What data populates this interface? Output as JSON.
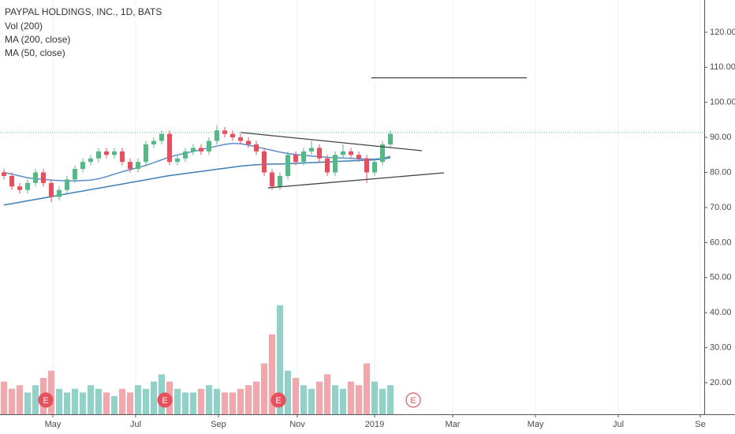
{
  "chart_data": {
    "type": "candlestick",
    "title": "PAYPAL HOLDINGS, INC., 1D, BATS",
    "indicators": [
      "Vol (200)",
      "MA (200, close)",
      "MA (50, close)"
    ],
    "open": [
      80,
      79,
      76,
      75,
      77,
      80,
      77,
      73,
      75,
      78,
      81,
      83,
      84,
      86,
      85,
      86,
      83,
      81,
      83,
      88,
      89,
      91,
      83,
      84,
      86,
      87,
      86,
      89,
      92,
      91,
      90,
      89,
      88,
      86,
      80,
      76,
      79,
      85,
      83,
      86,
      87,
      84,
      80,
      85,
      86,
      85,
      84,
      80,
      83,
      88
    ],
    "high": [
      81,
      80,
      77,
      78,
      81,
      81,
      78,
      76,
      79,
      82,
      84,
      85,
      87,
      87,
      87,
      87,
      84,
      84,
      89,
      90,
      92,
      92,
      85,
      87,
      88,
      88,
      90,
      93.5,
      93,
      92,
      91,
      90,
      89,
      87,
      81,
      80,
      86,
      86,
      87,
      89,
      88,
      85,
      86,
      88,
      87,
      86,
      85,
      84,
      89,
      92
    ],
    "low": [
      78,
      75,
      74,
      74,
      76,
      76,
      71.5,
      72,
      74,
      77,
      80,
      82,
      83,
      84,
      84,
      82,
      80,
      80,
      82,
      87,
      88,
      82,
      82,
      83,
      85,
      85,
      85,
      88,
      90,
      89,
      88,
      87,
      85,
      79,
      75,
      75,
      78,
      82,
      82,
      85,
      83,
      79,
      79,
      84,
      84,
      83,
      77,
      79,
      82,
      87
    ],
    "close": [
      79,
      76,
      75,
      77,
      80,
      77,
      73,
      75,
      78,
      81,
      83,
      84,
      86,
      85,
      86,
      83,
      81,
      83,
      88,
      89,
      91,
      83,
      84,
      86,
      87,
      86,
      89,
      92,
      91,
      90,
      89,
      88,
      86,
      80,
      76,
      79,
      85,
      83,
      86,
      87,
      84,
      80,
      85,
      86,
      85,
      84,
      80,
      83,
      88,
      91
    ],
    "volume": [
      9,
      7,
      8,
      6,
      8,
      10,
      12,
      7,
      6,
      7,
      6,
      8,
      7,
      6,
      5,
      7,
      6,
      8,
      7,
      9,
      11,
      9,
      7,
      6,
      6,
      7,
      8,
      7,
      6,
      6,
      7,
      8,
      9,
      14,
      22,
      30,
      12,
      10,
      8,
      7,
      9,
      11,
      8,
      7,
      9,
      8,
      14,
      9,
      7,
      8
    ],
    "volume_ylim": [
      0,
      38
    ],
    "series": [
      {
        "name": "MA (200, close)",
        "color": "#3f7fb5",
        "values": [
          70.7,
          71.1,
          71.5,
          71.9,
          72.3,
          72.7,
          73.1,
          73.5,
          73.9,
          74.3,
          74.7,
          75.1,
          75.5,
          75.9,
          76.3,
          76.7,
          77.1,
          77.5,
          77.9,
          78.3,
          78.7,
          79.1,
          79.4,
          79.7,
          80,
          80.3,
          80.6,
          80.9,
          81.2,
          81.5,
          81.8,
          82,
          82.2,
          82.3,
          82.4,
          82.4,
          82.5,
          82.6,
          82.7,
          82.8,
          82.9,
          83,
          83.1,
          83.2,
          83.3,
          83.4,
          83.5,
          83.6,
          83.8,
          84.2
        ]
      },
      {
        "name": "MA (50, close)",
        "color": "#5b8fc9",
        "values": [
          80,
          79.5,
          79,
          78.5,
          78.2,
          78,
          77.8,
          77.7,
          77.6,
          77.6,
          77.7,
          77.8,
          78.2,
          78.8,
          79.5,
          80.2,
          80.8,
          81.4,
          82,
          82.8,
          83.6,
          84.4,
          85,
          85.5,
          86,
          86.5,
          87,
          87.5,
          88,
          88.3,
          88.2,
          87.8,
          87.3,
          86.8,
          86.3,
          85.8,
          85.4,
          85.1,
          84.9,
          84.7,
          84.5,
          84.3,
          84.2,
          84.1,
          84,
          83.9,
          83.8,
          83.8,
          84,
          84.6
        ]
      }
    ],
    "up_color": "#53b987",
    "down_color": "#eb4d5c",
    "volume_up_color": "#8fd3c8",
    "volume_down_color": "#f5a6aa",
    "drawings": [
      {
        "x": [
          30.5,
          53.5
        ],
        "y": [
          91.4,
          86.2
        ]
      },
      {
        "x": [
          34,
          56.3
        ],
        "y": [
          75.6,
          79.9
        ]
      },
      {
        "x": [
          47.1,
          66.8
        ],
        "y": [
          107,
          107
        ]
      }
    ],
    "last_price": 91.4,
    "events": [
      {
        "x": 5.8,
        "label": "E",
        "future": false
      },
      {
        "x": 20.9,
        "label": "E",
        "future": false
      },
      {
        "x": 35.3,
        "label": "E",
        "future": false
      },
      {
        "x": 52.4,
        "label": "E",
        "future": true
      }
    ],
    "xlim": [
      0,
      89.3
    ],
    "xticks": [
      {
        "value": 6.7,
        "label": "May"
      },
      {
        "value": 17.2,
        "label": "Jul"
      },
      {
        "value": 27.7,
        "label": "Sep"
      },
      {
        "value": 37.7,
        "label": "Nov"
      },
      {
        "value": 47.5,
        "label": "2019"
      },
      {
        "value": 57.4,
        "label": "Mar"
      },
      {
        "value": 67.9,
        "label": "May"
      },
      {
        "value": 78.4,
        "label": "Jul"
      },
      {
        "value": 88.8,
        "label": "Se"
      }
    ],
    "ylim": [
      11,
      129.2
    ],
    "yticks": [
      {
        "value": 20,
        "label": "20.00"
      },
      {
        "value": 30,
        "label": "30.00"
      },
      {
        "value": 40,
        "label": "40.00"
      },
      {
        "value": 50,
        "label": "50.00"
      },
      {
        "value": 60,
        "label": "60.00"
      },
      {
        "value": 70,
        "label": "70.00"
      },
      {
        "value": 80,
        "label": "80.00"
      },
      {
        "value": 90,
        "label": "90.00"
      },
      {
        "value": 100,
        "label": "100.00"
      },
      {
        "value": 110,
        "label": "110.00"
      },
      {
        "value": 120,
        "label": "120.00"
      }
    ]
  }
}
